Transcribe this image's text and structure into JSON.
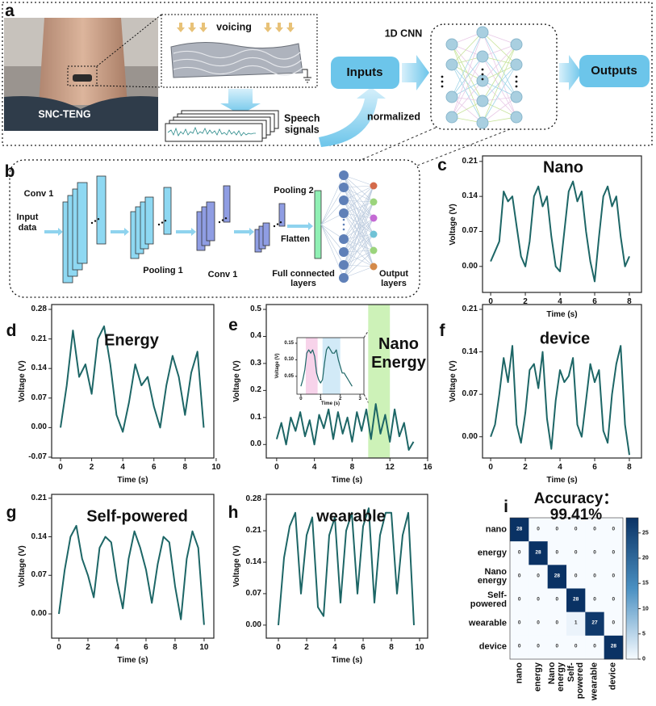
{
  "panels": {
    "a": {
      "label": "a",
      "voicing": "voicing",
      "device": "SNC-TENG",
      "cnn": "1D CNN",
      "inputs": "Inputs",
      "outputs": "Outputs",
      "signals": "Speech\nsignals",
      "normalized": "normalized"
    },
    "b": {
      "label": "b",
      "conv1": "Conv 1",
      "input": "Input\ndata",
      "pool1": "Pooling 1",
      "conv2": "Conv 1",
      "pool2": "Pooling 2",
      "flatten": "Flatten",
      "fc": "Full connected\nlayers",
      "output": "Output\nlayers"
    }
  },
  "chart_data": [
    {
      "panel_label": "c",
      "type": "line",
      "title": "Nano",
      "color": "#1d6666",
      "x": [
        0,
        0.25,
        0.5,
        0.75,
        1,
        1.25,
        1.5,
        1.75,
        2,
        2.25,
        2.5,
        2.75,
        3,
        3.25,
        3.5,
        3.75,
        4,
        4.25,
        4.5,
        4.75,
        5,
        5.25,
        5.5,
        5.75,
        6,
        6.25,
        6.5,
        6.75,
        7,
        7.25,
        7.5,
        7.75,
        8
      ],
      "values": [
        0.01,
        0.03,
        0.05,
        0.15,
        0.13,
        0.14,
        0.08,
        0.02,
        0.0,
        0.05,
        0.14,
        0.16,
        0.12,
        0.14,
        0.06,
        0.0,
        -0.01,
        0.07,
        0.15,
        0.17,
        0.13,
        0.15,
        0.07,
        0.01,
        -0.03,
        0.06,
        0.14,
        0.16,
        0.12,
        0.14,
        0.06,
        0.0,
        0.02
      ],
      "xlim": [
        -0.47,
        8.7
      ],
      "ylim": [
        -0.052,
        0.221
      ],
      "xticks": [
        0,
        2,
        4,
        6,
        8
      ],
      "yticks": [
        {
          "value": 0,
          "label": "0.00"
        },
        0.07,
        0.14,
        0.21
      ],
      "xlabel": "Time (s)",
      "ylabel": "Voltage (V)"
    },
    {
      "panel_label": "d",
      "type": "line",
      "title": "Energy",
      "color": "#1d6666",
      "x": [
        0,
        0.4,
        0.8,
        1.2,
        1.6,
        2,
        2.4,
        2.8,
        3.2,
        3.6,
        4,
        4.4,
        4.8,
        5.2,
        5.6,
        6,
        6.4,
        6.8,
        7.2,
        7.6,
        8,
        8.4,
        8.8,
        9.2
      ],
      "values": [
        0.0,
        0.1,
        0.23,
        0.12,
        0.15,
        0.08,
        0.21,
        0.24,
        0.15,
        0.03,
        -0.01,
        0.06,
        0.15,
        0.1,
        0.12,
        0.05,
        0.0,
        0.1,
        0.17,
        0.12,
        0.03,
        0.13,
        0.18,
        0.0
      ],
      "xlim": [
        -0.57,
        9.85
      ],
      "ylim": [
        -0.072,
        0.2915
      ],
      "xticks": [
        0,
        2,
        4,
        6,
        8,
        10
      ],
      "yticks": [
        -0.07,
        {
          "value": 0,
          "label": "0.00"
        },
        0.07,
        0.14,
        0.21,
        0.28
      ],
      "xlabel": "Time (s)",
      "ylabel": "Voltage (V)"
    },
    {
      "panel_label": "e",
      "type": "line",
      "annotation": "Nano\nEnergy",
      "color": "#1d6666",
      "x": [
        0,
        0.5,
        1,
        1.5,
        2,
        2.5,
        3,
        3.5,
        4,
        4.5,
        5,
        5.5,
        6,
        6.5,
        7,
        7.5,
        8,
        8.5,
        9,
        9.5,
        10,
        10.5,
        11,
        11.5,
        12,
        12.5,
        13,
        13.5,
        14,
        14.5
      ],
      "values": [
        0.02,
        0.08,
        0.0,
        0.1,
        0.05,
        0.12,
        0.03,
        0.09,
        0.0,
        0.11,
        0.06,
        0.13,
        0.02,
        0.12,
        0.04,
        0.1,
        0.01,
        0.12,
        0.05,
        0.13,
        0.02,
        0.15,
        0.04,
        0.11,
        0.01,
        0.13,
        0.03,
        0.08,
        -0.02,
        0.01
      ],
      "xlim": [
        -1.1,
        16
      ],
      "ylim": [
        -0.05,
        0.518
      ],
      "xticks": [
        0,
        4,
        8,
        12,
        16
      ],
      "yticks": [
        {
          "value": 0,
          "label": "0.0"
        },
        0.1,
        0.2,
        0.3,
        0.4,
        0.5
      ],
      "xlabel": "Time (s)",
      "ylabel": "Voltage (V)",
      "highlight": {
        "xlim": [
          9.7,
          12.0
        ],
        "color": "#cdf2b8"
      },
      "inset": {
        "type": "line",
        "color": "#1d6666",
        "x": [
          0,
          0.1,
          0.2,
          0.3,
          0.4,
          0.5,
          0.6,
          0.7,
          0.8,
          0.9,
          1,
          1.1,
          1.2,
          1.3,
          1.4,
          1.5,
          1.6,
          1.7,
          1.8,
          1.9,
          2,
          2.1,
          2.2,
          2.3,
          2.4,
          2.5,
          2.6
        ],
        "values": [
          0.02,
          0.04,
          0.07,
          0.12,
          0.13,
          0.12,
          0.13,
          0.11,
          0.06,
          0.04,
          0.03,
          0.04,
          0.09,
          0.13,
          0.14,
          0.13,
          0.12,
          0.12,
          0.13,
          0.1,
          0.08,
          0.06,
          0.06,
          0.05,
          0.04,
          0.03,
          0.02
        ],
        "xlim": [
          -0.2,
          3.2
        ],
        "ylim": [
          -0.004,
          0.167
        ],
        "xticks": [
          0,
          1,
          2,
          3
        ],
        "yticks": [
          0.05,
          {
            "value": 0.1,
            "label": "0.10"
          },
          0.15
        ],
        "xlabel": "Time (s)",
        "ylabel": "Voltage (V)",
        "highlights": [
          {
            "xlim": [
              0.25,
              0.85
            ],
            "color": "#f7d3ea"
          },
          {
            "xlim": [
              1.1,
              2.0
            ],
            "color": "#d2eaf7"
          }
        ]
      }
    },
    {
      "panel_label": "f",
      "type": "line",
      "title": "device",
      "color": "#1d6666",
      "x": [
        0,
        0.25,
        0.5,
        0.75,
        1,
        1.25,
        1.5,
        1.75,
        2,
        2.25,
        2.5,
        2.75,
        3,
        3.25,
        3.5,
        3.75,
        4,
        4.25,
        4.5,
        4.75,
        5,
        5.25,
        5.5,
        5.75,
        6,
        6.25,
        6.5,
        6.75,
        7,
        7.25,
        7.5,
        7.75,
        8
      ],
      "values": [
        0.0,
        0.02,
        0.07,
        0.13,
        0.09,
        0.15,
        0.02,
        -0.01,
        0.04,
        0.11,
        0.12,
        0.08,
        0.14,
        0.03,
        -0.02,
        0.06,
        0.11,
        0.09,
        0.1,
        0.13,
        0.02,
        0.0,
        0.06,
        0.12,
        0.09,
        0.11,
        0.01,
        -0.01,
        0.07,
        0.12,
        0.15,
        0.02,
        -0.03
      ],
      "xlim": [
        -0.47,
        8.7
      ],
      "ylim": [
        -0.035,
        0.218
      ],
      "xticks": [
        0,
        2,
        4,
        6,
        8
      ],
      "yticks": [
        {
          "value": 0,
          "label": "0.00"
        },
        0.07,
        0.14,
        0.21
      ],
      "xlabel": "Time (s)",
      "ylabel": "Voltage (V)"
    },
    {
      "panel_label": "g",
      "type": "line",
      "title": "Self-powered",
      "color": "#1d6666",
      "x": [
        0,
        0.4,
        0.8,
        1.2,
        1.6,
        2,
        2.4,
        2.8,
        3.2,
        3.6,
        4,
        4.4,
        4.8,
        5.2,
        5.6,
        6,
        6.4,
        6.8,
        7.2,
        7.6,
        8,
        8.4,
        8.8,
        9.2,
        9.6,
        10
      ],
      "values": [
        0.0,
        0.08,
        0.14,
        0.16,
        0.1,
        0.07,
        0.03,
        0.12,
        0.14,
        0.13,
        0.06,
        0.01,
        0.1,
        0.15,
        0.12,
        0.08,
        0.02,
        0.09,
        0.14,
        0.13,
        0.05,
        -0.01,
        0.1,
        0.15,
        0.12,
        -0.02
      ],
      "xlim": [
        -0.5,
        10.67
      ],
      "ylim": [
        -0.044,
        0.217
      ],
      "xticks": [
        0,
        2,
        4,
        6,
        8,
        10
      ],
      "yticks": [
        {
          "value": 0,
          "label": "0.00"
        },
        0.07,
        0.14,
        0.21
      ],
      "xlabel": "Time (s)",
      "ylabel": "Voltage (V)"
    },
    {
      "panel_label": "h",
      "type": "line",
      "title": "wearable",
      "color": "#1d6666",
      "x": [
        0,
        0.4,
        0.8,
        1.2,
        1.6,
        2,
        2.4,
        2.8,
        3.2,
        3.6,
        4,
        4.4,
        4.8,
        5.2,
        5.6,
        6,
        6.4,
        6.8,
        7.2,
        7.6,
        8,
        8.4,
        8.8,
        9.2,
        9.6
      ],
      "values": [
        0.0,
        0.15,
        0.22,
        0.25,
        0.07,
        0.2,
        0.24,
        0.04,
        0.02,
        0.2,
        0.24,
        0.05,
        0.21,
        0.25,
        0.07,
        0.22,
        0.26,
        0.05,
        0.2,
        0.25,
        0.25,
        0.07,
        0.2,
        0.25,
        0.0
      ],
      "xlim": [
        -0.86,
        10.57
      ],
      "ylim": [
        -0.029,
        0.291
      ],
      "xticks": [
        0,
        2,
        4,
        6,
        8,
        10
      ],
      "yticks": [
        {
          "value": 0,
          "label": "0.00"
        },
        0.07,
        0.14,
        0.21,
        0.28
      ],
      "xlabel": "Time (s)",
      "ylabel": "Voltage (V)"
    },
    {
      "panel_label": "i",
      "type": "heatmap",
      "title": "Accuracy：99.41%",
      "categories": [
        "nano",
        "energy",
        "Nano\nenergy",
        "Self-\npowered",
        "wearable",
        "device"
      ],
      "values": [
        [
          28,
          0,
          0,
          0,
          0,
          0
        ],
        [
          0,
          28,
          0,
          0,
          0,
          0
        ],
        [
          0,
          0,
          28,
          0,
          0,
          0
        ],
        [
          0,
          0,
          0,
          28,
          0,
          0
        ],
        [
          0,
          0,
          0,
          1,
          27,
          0
        ],
        [
          0,
          0,
          0,
          0,
          0,
          28
        ]
      ],
      "zlim": [
        0,
        28
      ],
      "zticks": [
        0,
        5,
        10,
        15,
        20,
        25
      ],
      "colors": [
        "#f7fbff",
        "#4a90c2",
        "#0a3264"
      ]
    }
  ]
}
